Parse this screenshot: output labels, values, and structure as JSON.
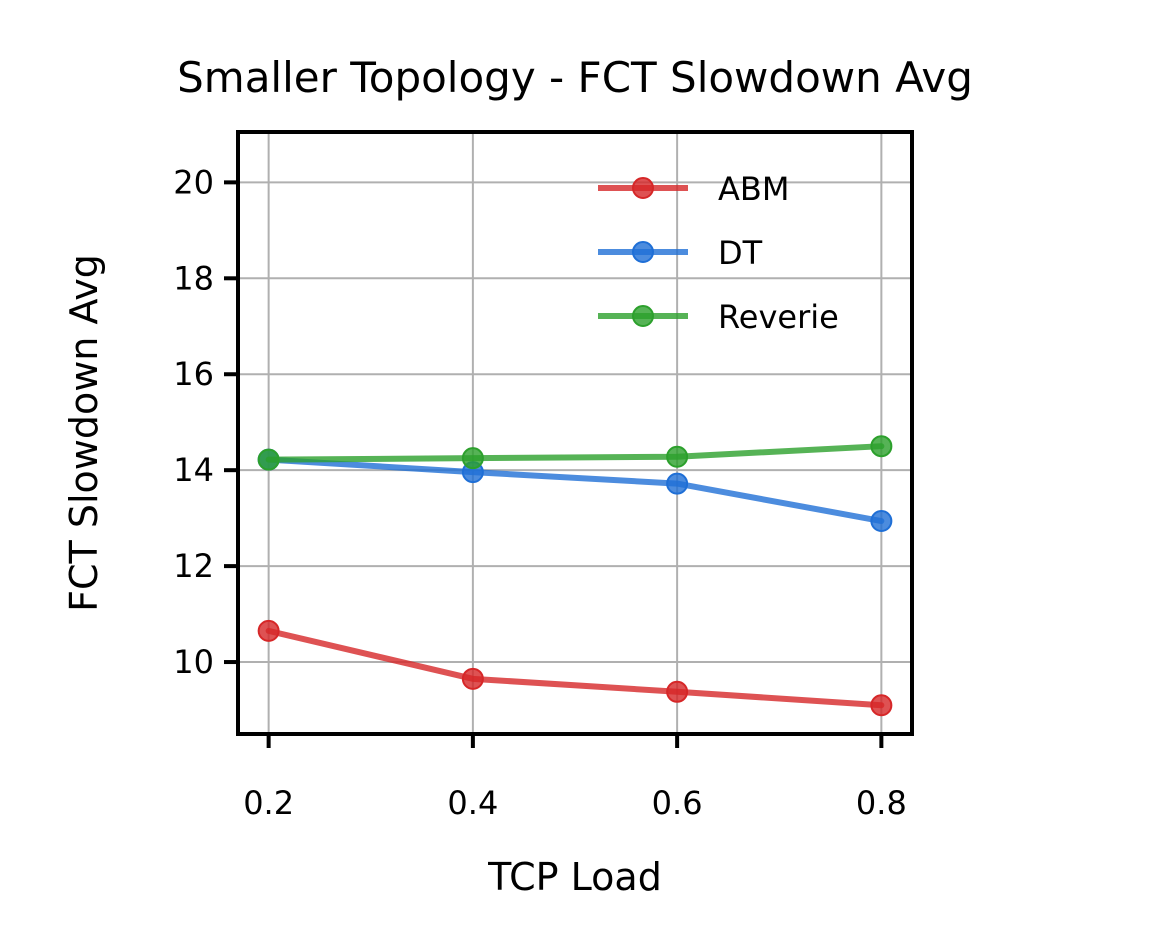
{
  "chart_data": {
    "type": "line",
    "title": "Smaller Topology - FCT Slowdown Avg",
    "xlabel": "TCP Load",
    "ylabel": "FCT Slowdown Avg",
    "x": [
      0.2,
      0.4,
      0.6,
      0.8
    ],
    "x_tick_labels": [
      "0.2",
      "0.4",
      "0.6",
      "0.8"
    ],
    "y_ticks": [
      10,
      12,
      14,
      16,
      18,
      20
    ],
    "y_tick_labels": [
      "10",
      "12",
      "14",
      "16",
      "18",
      "20"
    ],
    "xlim": [
      0.17,
      0.83
    ],
    "ylim": [
      8.5,
      21.05
    ],
    "grid": true,
    "legend_position": "top-right",
    "series": [
      {
        "name": "ABM",
        "color": "#d62728",
        "values": [
          10.65,
          9.65,
          9.38,
          9.1
        ]
      },
      {
        "name": "DT",
        "color": "#1f6fd6",
        "values": [
          14.22,
          13.96,
          13.72,
          12.94
        ]
      },
      {
        "name": "Reverie",
        "color": "#2ca02c",
        "values": [
          14.22,
          14.25,
          14.28,
          14.5
        ]
      }
    ]
  }
}
